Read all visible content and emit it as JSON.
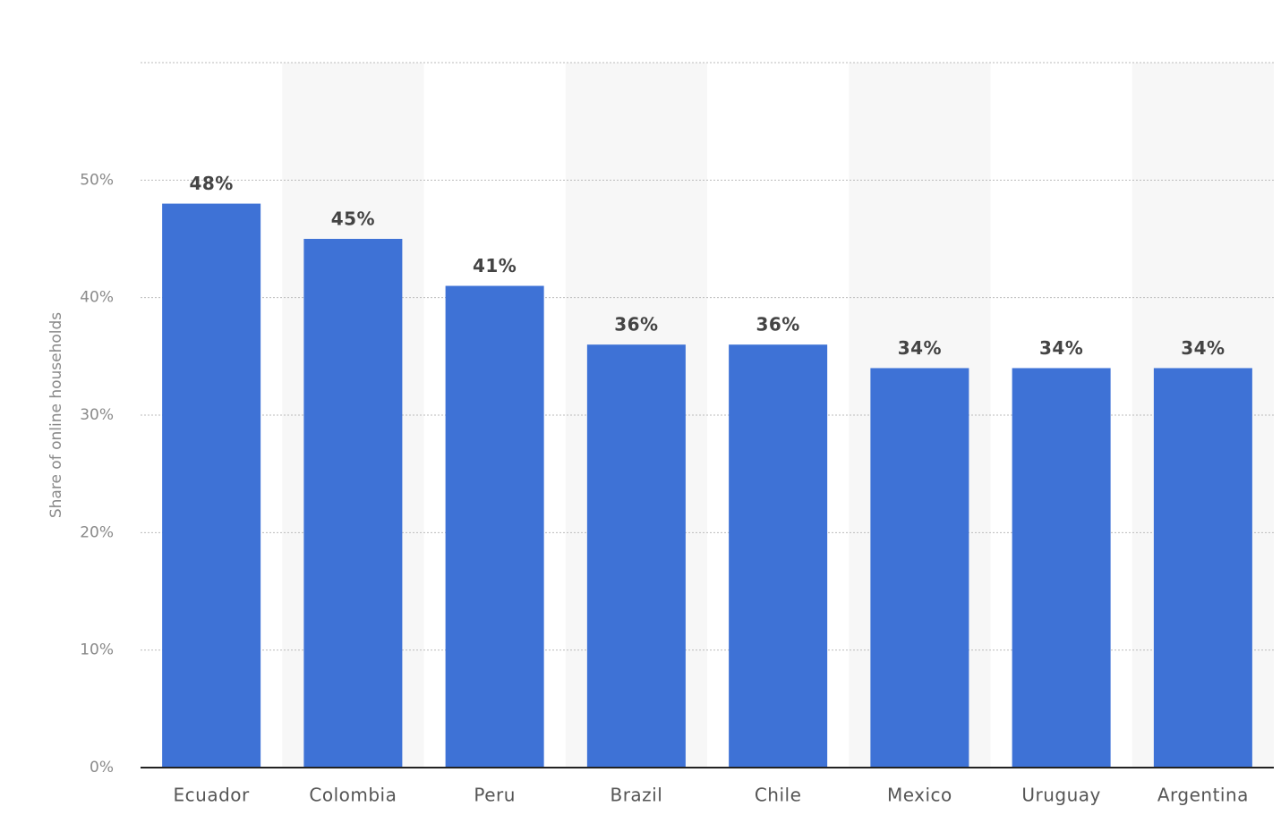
{
  "chart_data": {
    "type": "bar",
    "y_label": "Share of online households",
    "categories": [
      "Ecuador",
      "Colombia",
      "Peru",
      "Brazil",
      "Chile",
      "Mexico",
      "Uruguay",
      "Argentina"
    ],
    "values": [
      48,
      45,
      41,
      36,
      36,
      34,
      34,
      34
    ],
    "value_labels": [
      "48%",
      "45%",
      "41%",
      "36%",
      "36%",
      "34%",
      "34%",
      "34%"
    ],
    "color": "#3e72d6",
    "ylim": [
      0,
      60
    ],
    "yticks": [
      {
        "value": 0,
        "label": "0%"
      },
      {
        "value": 10,
        "label": "10%"
      },
      {
        "value": 20,
        "label": "20%"
      },
      {
        "value": 30,
        "label": "30%"
      },
      {
        "value": 40,
        "label": "40%"
      },
      {
        "value": 50,
        "label": "50%"
      }
    ],
    "grid": true
  }
}
